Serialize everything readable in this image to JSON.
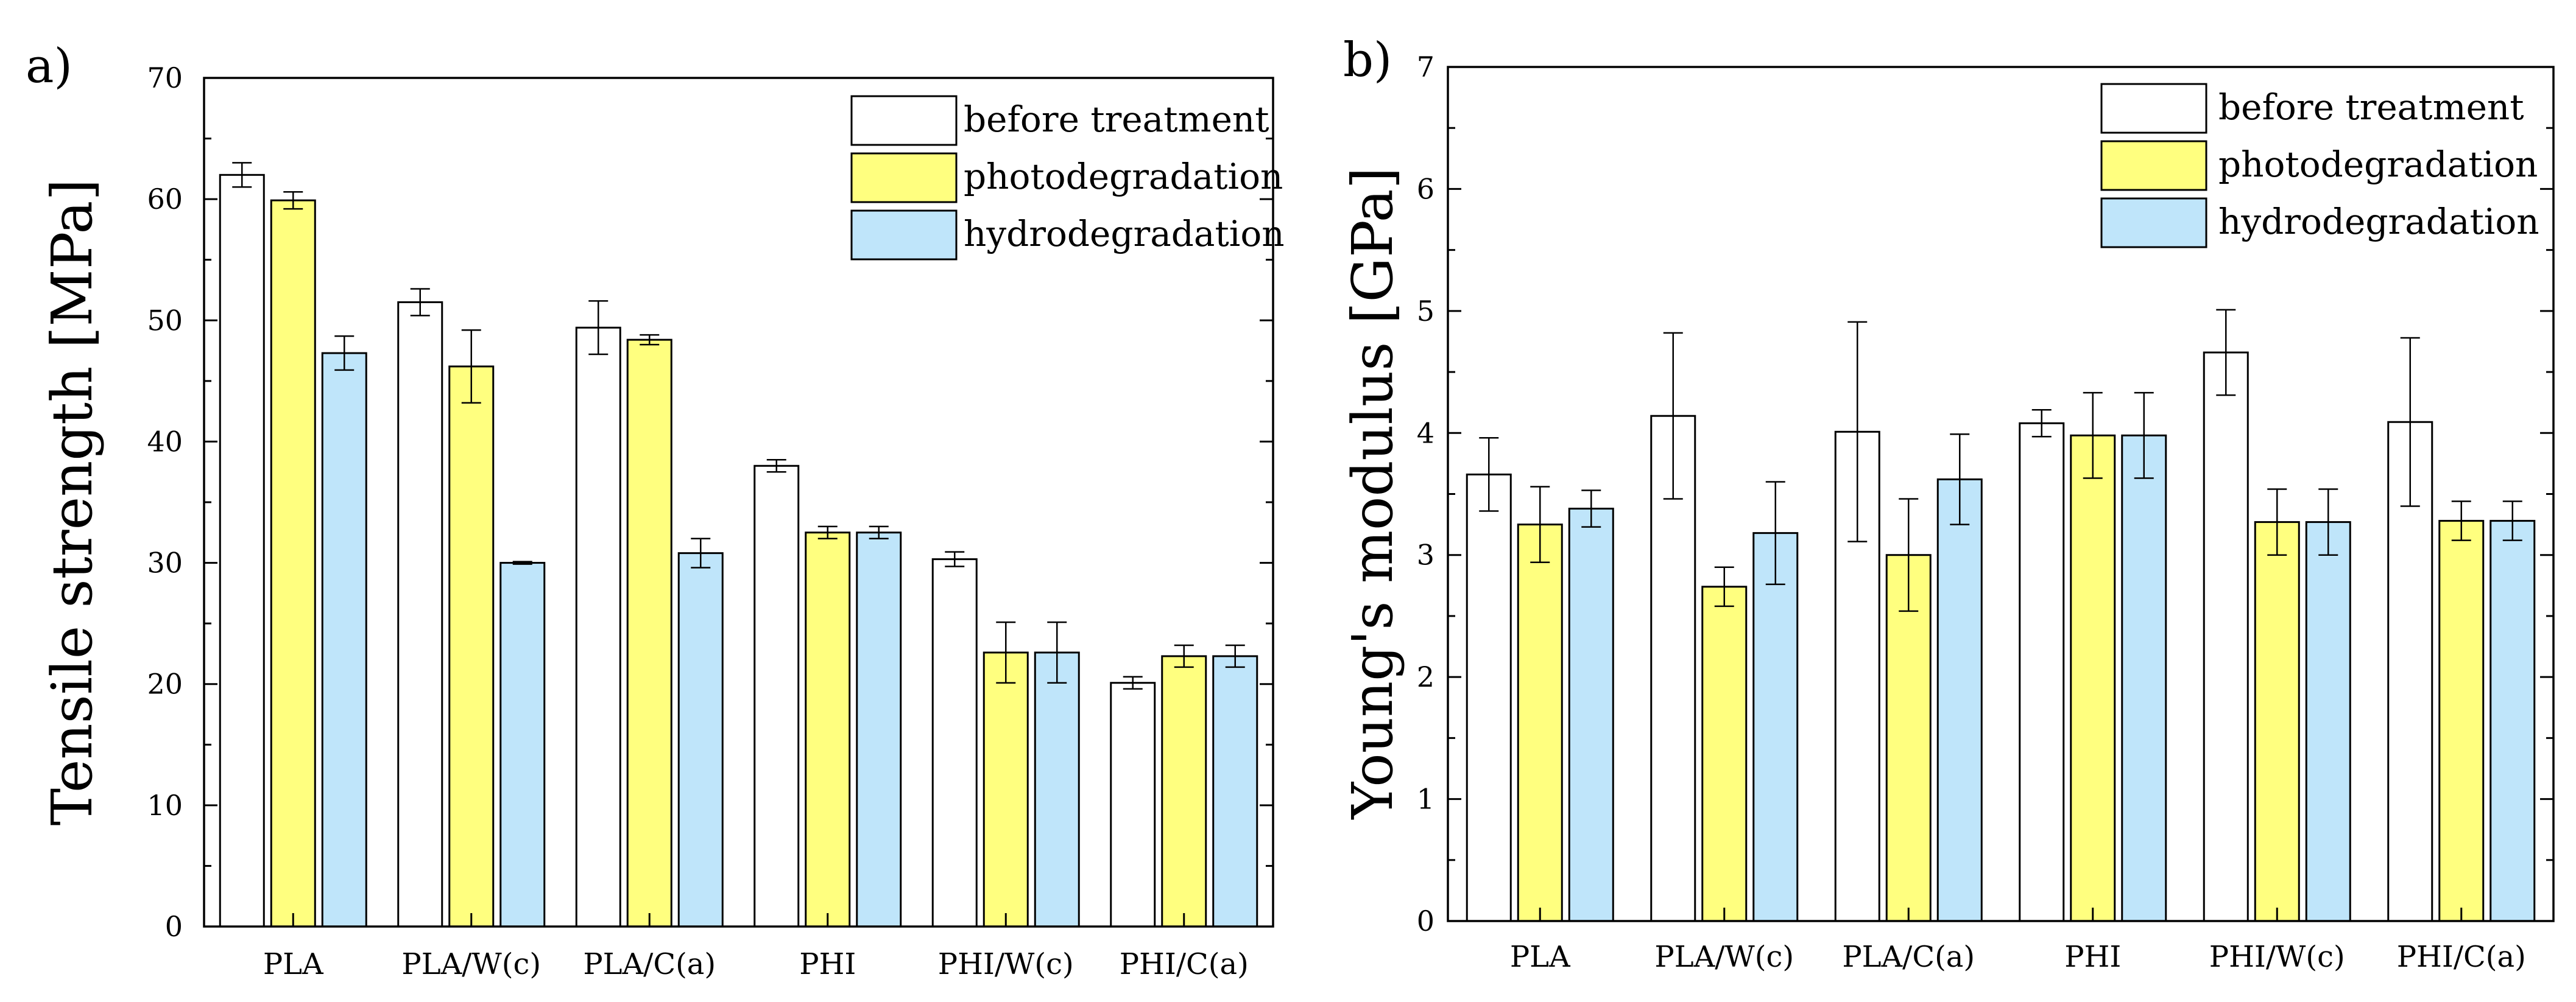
{
  "chart_data": [
    {
      "panel_label": "a)",
      "type": "bar",
      "title": "",
      "xlabel": "",
      "ylabel": "Tensile strength [MPa]",
      "ylim": [
        0,
        70
      ],
      "yticks": [
        0,
        10,
        20,
        30,
        40,
        50,
        60,
        70
      ],
      "grid": false,
      "legend_position": "top-right",
      "categories": [
        "PLA",
        "PLA/W(c)",
        "PLA/C(a)",
        "PHI",
        "PHI/W(c)",
        "PHI/C(a)"
      ],
      "series": [
        {
          "name": "before treatment",
          "color": "#ffffff",
          "values": [
            62.0,
            51.5,
            49.4,
            38.0,
            30.3,
            20.1
          ],
          "errors": [
            1.0,
            1.1,
            2.2,
            0.5,
            0.6,
            0.5
          ]
        },
        {
          "name": "photodegradation",
          "color": "#ffff7f",
          "values": [
            59.9,
            46.2,
            48.4,
            32.5,
            22.6,
            22.3
          ],
          "errors": [
            0.7,
            3.0,
            0.4,
            0.5,
            2.5,
            0.9
          ]
        },
        {
          "name": "hydrodegradation",
          "color": "#bfe5fa",
          "values": [
            47.3,
            30.0,
            30.8,
            32.5,
            22.6,
            22.3
          ],
          "errors": [
            1.4,
            0.1,
            1.2,
            0.5,
            2.5,
            0.9
          ]
        }
      ]
    },
    {
      "panel_label": "b)",
      "type": "bar",
      "title": "",
      "xlabel": "",
      "ylabel": "Young's modulus [GPa]",
      "ylim": [
        0,
        7
      ],
      "yticks": [
        0,
        1,
        2,
        3,
        4,
        5,
        6,
        7
      ],
      "grid": false,
      "legend_position": "top-right",
      "categories": [
        "PLA",
        "PLA/W(c)",
        "PLA/C(a)",
        "PHI",
        "PHI/W(c)",
        "PHI/C(a)"
      ],
      "series": [
        {
          "name": "before treatment",
          "color": "#ffffff",
          "values": [
            3.66,
            4.14,
            4.01,
            4.08,
            4.66,
            4.09
          ],
          "errors": [
            0.3,
            0.68,
            0.9,
            0.11,
            0.35,
            0.69
          ]
        },
        {
          "name": "photodegradation",
          "color": "#ffff7f",
          "values": [
            3.25,
            2.74,
            3.0,
            3.98,
            3.27,
            3.28
          ],
          "errors": [
            0.31,
            0.16,
            0.46,
            0.35,
            0.27,
            0.16
          ]
        },
        {
          "name": "hydrodegradation",
          "color": "#bfe5fa",
          "values": [
            3.38,
            3.18,
            3.62,
            3.98,
            3.27,
            3.28
          ],
          "errors": [
            0.15,
            0.42,
            0.37,
            0.35,
            0.27,
            0.16
          ]
        }
      ]
    }
  ]
}
